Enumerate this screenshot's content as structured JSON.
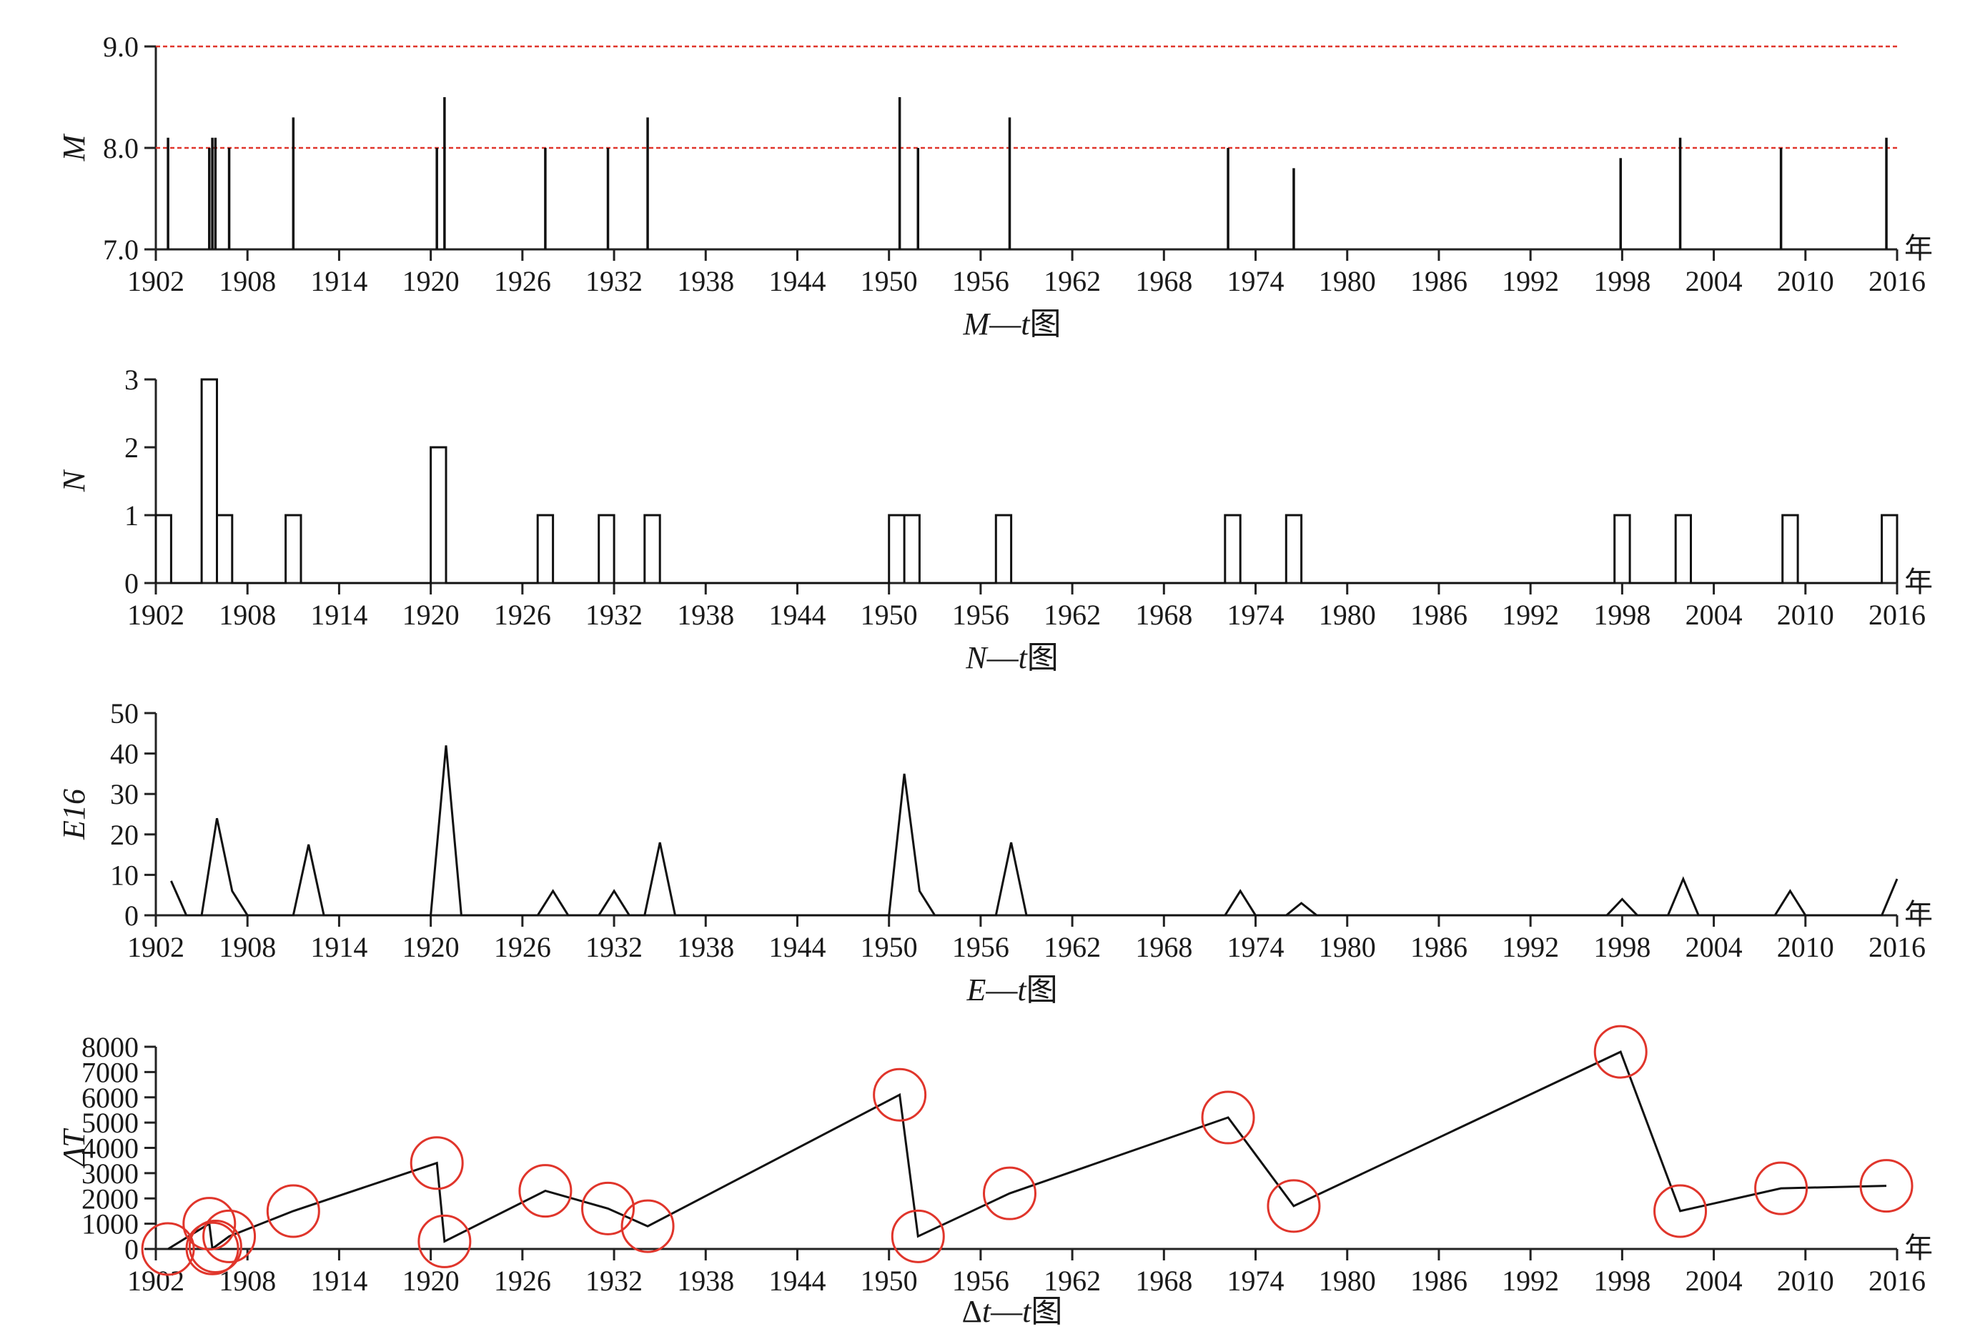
{
  "chart_data": [
    {
      "type": "bar",
      "caption": "M—t图",
      "caption_italic": "M",
      "caption_mid": "—",
      "caption_italic2": "t",
      "caption_tail": "图",
      "ylabel": "M",
      "x_unit": "年",
      "xlim": [
        1902,
        2016
      ],
      "ylim": [
        7.0,
        9.0
      ],
      "yticks": [
        "7.0",
        "8.0",
        "9.0"
      ],
      "ytick_values": [
        7.0,
        8.0,
        9.0
      ],
      "xticks": [
        "1902",
        "1908",
        "1914",
        "1920",
        "1926",
        "1932",
        "1938",
        "1944",
        "1950",
        "1956",
        "1962",
        "1968",
        "1974",
        "1980",
        "1986",
        "1992",
        "1998",
        "2004",
        "2010",
        "2016"
      ],
      "reference_lines": [
        8.0,
        9.0
      ],
      "reference_color": "#e0352b",
      "events": [
        {
          "x": 1902.8,
          "y": 8.1
        },
        {
          "x": 1905.5,
          "y": 8.0
        },
        {
          "x": 1905.7,
          "y": 8.1
        },
        {
          "x": 1905.9,
          "y": 8.1
        },
        {
          "x": 1906.8,
          "y": 8.0
        },
        {
          "x": 1911.0,
          "y": 8.3
        },
        {
          "x": 1920.4,
          "y": 8.0
        },
        {
          "x": 1920.9,
          "y": 8.5
        },
        {
          "x": 1927.5,
          "y": 8.0
        },
        {
          "x": 1931.6,
          "y": 8.0
        },
        {
          "x": 1934.2,
          "y": 8.3
        },
        {
          "x": 1950.7,
          "y": 8.5
        },
        {
          "x": 1951.9,
          "y": 8.0
        },
        {
          "x": 1957.9,
          "y": 8.3
        },
        {
          "x": 1972.2,
          "y": 8.0
        },
        {
          "x": 1976.5,
          "y": 7.8
        },
        {
          "x": 1997.9,
          "y": 7.9
        },
        {
          "x": 2001.8,
          "y": 8.1
        },
        {
          "x": 2008.4,
          "y": 8.0
        },
        {
          "x": 2015.3,
          "y": 8.1
        }
      ]
    },
    {
      "type": "line",
      "caption": "N—t图",
      "caption_italic": "N",
      "caption_mid": "—",
      "caption_italic2": "t",
      "caption_tail": "图",
      "ylabel": "N",
      "x_unit": "年",
      "xlim": [
        1902,
        2016
      ],
      "ylim": [
        0,
        3
      ],
      "yticks": [
        "0",
        "1",
        "2",
        "3"
      ],
      "ytick_values": [
        0,
        1,
        2,
        3
      ],
      "xticks": [
        "1902",
        "1908",
        "1914",
        "1920",
        "1926",
        "1932",
        "1938",
        "1944",
        "1950",
        "1956",
        "1962",
        "1968",
        "1974",
        "1980",
        "1986",
        "1992",
        "1998",
        "2004",
        "2010",
        "2016"
      ],
      "bins": [
        {
          "x0": 1902.0,
          "x1": 1903.0,
          "n": 1
        },
        {
          "x0": 1905.0,
          "x1": 1906.0,
          "n": 3
        },
        {
          "x0": 1906.0,
          "x1": 1907.0,
          "n": 1
        },
        {
          "x0": 1910.5,
          "x1": 1911.5,
          "n": 1
        },
        {
          "x0": 1920.0,
          "x1": 1921.0,
          "n": 2
        },
        {
          "x0": 1927.0,
          "x1": 1928.0,
          "n": 1
        },
        {
          "x0": 1931.0,
          "x1": 1932.0,
          "n": 1
        },
        {
          "x0": 1934.0,
          "x1": 1935.0,
          "n": 1
        },
        {
          "x0": 1950.0,
          "x1": 1951.0,
          "n": 1
        },
        {
          "x0": 1951.0,
          "x1": 1952.0,
          "n": 1
        },
        {
          "x0": 1957.0,
          "x1": 1958.0,
          "n": 1
        },
        {
          "x0": 1972.0,
          "x1": 1973.0,
          "n": 1
        },
        {
          "x0": 1976.0,
          "x1": 1977.0,
          "n": 1
        },
        {
          "x0": 1997.5,
          "x1": 1998.5,
          "n": 1
        },
        {
          "x0": 2001.5,
          "x1": 2002.5,
          "n": 1
        },
        {
          "x0": 2008.5,
          "x1": 2009.5,
          "n": 1
        },
        {
          "x0": 2015.0,
          "x1": 2016.0,
          "n": 1
        }
      ]
    },
    {
      "type": "line",
      "caption": "E—t图",
      "caption_italic": "E",
      "caption_mid": "—",
      "caption_italic2": "t",
      "caption_tail": "图",
      "ylabel": "E16",
      "x_unit": "年",
      "xlim": [
        1902,
        2016
      ],
      "ylim": [
        0,
        50
      ],
      "yticks": [
        "0",
        "10",
        "20",
        "30",
        "40",
        "50"
      ],
      "ytick_values": [
        0,
        10,
        20,
        30,
        40,
        50
      ],
      "xticks": [
        "1902",
        "1908",
        "1914",
        "1920",
        "1926",
        "1932",
        "1938",
        "1944",
        "1950",
        "1956",
        "1962",
        "1968",
        "1974",
        "1980",
        "1986",
        "1992",
        "1998",
        "2004",
        "2010",
        "2016"
      ],
      "x": [
        1903,
        1904,
        1905,
        1906,
        1907,
        1908,
        1911,
        1912,
        1913,
        1920,
        1921,
        1922,
        1927,
        1928,
        1929,
        1931,
        1932,
        1933,
        1934,
        1935,
        1936,
        1950,
        1951,
        1952,
        1953,
        1957,
        1958,
        1959,
        1972,
        1973,
        1974,
        1976,
        1977,
        1978,
        1997,
        1998,
        1999,
        2001,
        2002,
        2003,
        2008,
        2009,
        2010,
        2015,
        2016
      ],
      "y": [
        8.5,
        0,
        0,
        24,
        6,
        0,
        0,
        17.5,
        0,
        0,
        42,
        0,
        0,
        6,
        0,
        0,
        6,
        0,
        0,
        18,
        0,
        0,
        35,
        6,
        0,
        0,
        18,
        0,
        0,
        6,
        0,
        0,
        3,
        0,
        0,
        4,
        0,
        0,
        9,
        0,
        0,
        6,
        0,
        0,
        9
      ]
    },
    {
      "type": "line",
      "caption": "Δt—t图",
      "caption_italic": "",
      "caption_prefix": "Δ",
      "caption_mid": "—",
      "caption_italic2": "t",
      "caption_t1": "t",
      "caption_tail": "图",
      "ylabel": "ΔT",
      "x_unit": "年",
      "xlim": [
        1902,
        2016
      ],
      "ylim": [
        0,
        8000
      ],
      "yticks": [
        "0",
        "1000",
        "2000",
        "3000",
        "4000",
        "5000",
        "6000",
        "7000",
        "8000"
      ],
      "ytick_values": [
        0,
        1000,
        2000,
        3000,
        4000,
        5000,
        6000,
        7000,
        8000
      ],
      "xticks": [
        "1902",
        "1908",
        "1914",
        "1920",
        "1926",
        "1932",
        "1938",
        "1944",
        "1950",
        "1956",
        "1962",
        "1968",
        "1974",
        "1980",
        "1986",
        "1992",
        "1998",
        "2004",
        "2010",
        "2016"
      ],
      "x": [
        1902.8,
        1905.5,
        1905.7,
        1905.9,
        1906.8,
        1911.0,
        1920.4,
        1920.9,
        1927.5,
        1931.6,
        1934.2,
        1950.7,
        1951.9,
        1957.9,
        1972.2,
        1976.5,
        1997.9,
        2001.8,
        2008.4,
        2015.3
      ],
      "y": [
        0,
        1000,
        20,
        100,
        500,
        1500,
        3400,
        300,
        2300,
        1600,
        900,
        6100,
        500,
        2200,
        5200,
        1700,
        7800,
        1500,
        2400,
        2500
      ],
      "marker": "circle",
      "marker_color": "#e0352b"
    }
  ]
}
